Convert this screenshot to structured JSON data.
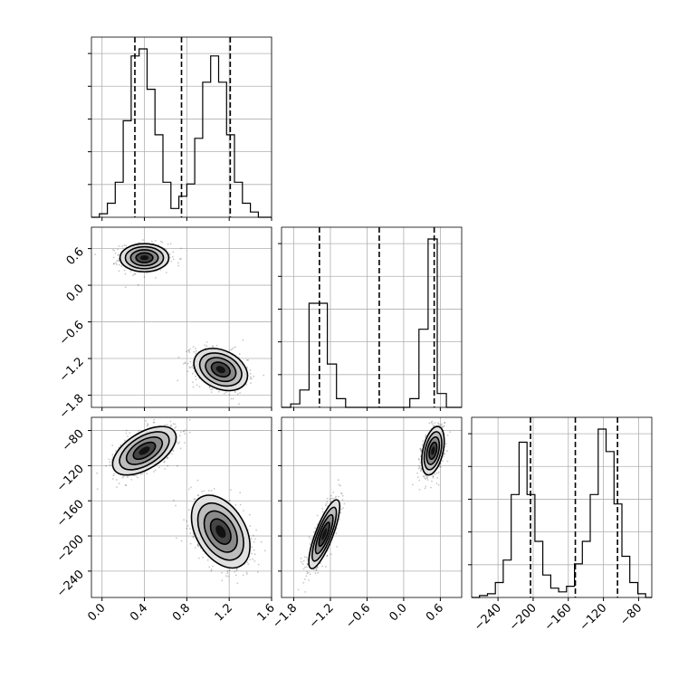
{
  "chart_data": {
    "type": "corner",
    "grid": true,
    "parameters": [
      {
        "range": [
          -0.1,
          1.6
        ],
        "ticks": [
          0.0,
          0.4,
          0.8,
          1.2,
          1.6
        ],
        "tick_labels": [
          "0.0",
          "0.4",
          "0.8",
          "1.2",
          "1.6"
        ],
        "quantiles": [
          0.31,
          0.75,
          1.21
        ],
        "histogram": {
          "edges": [
            -0.1,
            -0.025,
            0.05,
            0.125,
            0.2,
            0.275,
            0.35,
            0.425,
            0.5,
            0.575,
            0.65,
            0.725,
            0.8,
            0.875,
            0.95,
            1.025,
            1.1,
            1.175,
            1.25,
            1.325,
            1.4,
            1.475,
            1.55,
            1.6
          ],
          "counts": [
            0,
            2,
            8,
            20,
            55,
            92,
            96,
            73,
            47,
            20,
            5,
            12,
            19,
            45,
            77,
            92,
            77,
            47,
            20,
            8,
            3,
            0,
            0
          ]
        }
      },
      {
        "range": [
          -2.0,
          0.95
        ],
        "ticks": [
          -1.8,
          -1.2,
          -0.6,
          0.0,
          0.6
        ],
        "tick_labels": [
          "−1.8",
          "−1.2",
          "−0.6",
          "0.0",
          "0.6"
        ],
        "quantiles": [
          -1.38,
          -0.4,
          0.5
        ],
        "histogram": {
          "edges": [
            -2.0,
            -1.85,
            -1.7,
            -1.55,
            -1.4,
            -1.25,
            -1.1,
            -0.95,
            -0.8,
            -0.65,
            -0.5,
            -0.35,
            -0.2,
            -0.05,
            0.1,
            0.25,
            0.4,
            0.55,
            0.7,
            0.85,
            0.95
          ],
          "counts": [
            0,
            2,
            10,
            60,
            60,
            25,
            5,
            0,
            0,
            0,
            0,
            0,
            0,
            0,
            5,
            45,
            97,
            8,
            0,
            0
          ]
        }
      },
      {
        "range": [
          -270,
          -65
        ],
        "ticks": [
          -240,
          -200,
          -160,
          -120,
          -80
        ],
        "tick_labels": [
          "−240",
          "−200",
          "−160",
          "−120",
          "−80"
        ],
        "quantiles": [
          -203,
          -152,
          -104
        ],
        "histogram": {
          "edges": [
            -270,
            -261,
            -252,
            -243,
            -234,
            -225,
            -216,
            -207,
            -198,
            -189,
            -180,
            -171,
            -162,
            -153,
            -144,
            -135,
            -126,
            -117,
            -108,
            -99,
            -90,
            -81,
            -72,
            -65
          ],
          "counts": [
            0,
            1,
            2,
            8,
            20,
            55,
            83,
            55,
            30,
            12,
            5,
            3,
            6,
            18,
            30,
            55,
            90,
            78,
            50,
            22,
            8,
            2,
            0
          ]
        }
      }
    ],
    "joint": [
      {
        "x": 0,
        "y": 1,
        "modes": [
          {
            "cx": 0.4,
            "cy": 0.45,
            "sx": 0.1,
            "sy": 0.1,
            "rho": 0.0,
            "n": 650
          },
          {
            "cx": 1.12,
            "cy": -1.38,
            "sx": 0.11,
            "sy": 0.15,
            "rho": -0.3,
            "n": 650
          }
        ]
      },
      {
        "x": 0,
        "y": 2,
        "modes": [
          {
            "cx": 0.4,
            "cy": -103,
            "sx": 0.13,
            "sy": 12,
            "rho": 0.55,
            "n": 650
          },
          {
            "cx": 1.12,
            "cy": -195,
            "sx": 0.12,
            "sy": 18,
            "rho": -0.4,
            "n": 650
          }
        ]
      },
      {
        "x": 1,
        "y": 2,
        "modes": [
          {
            "cx": -1.3,
            "cy": -198,
            "sx": 0.11,
            "sy": 17,
            "rho": 0.8,
            "n": 650
          },
          {
            "cx": 0.48,
            "cy": -103,
            "sx": 0.08,
            "sy": 12,
            "rho": 0.4,
            "n": 650
          }
        ]
      }
    ]
  }
}
